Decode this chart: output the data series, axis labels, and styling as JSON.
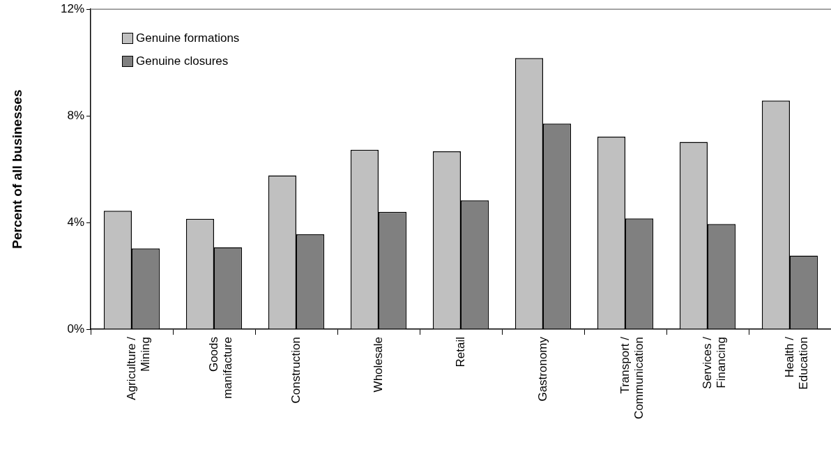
{
  "chart_data": {
    "type": "bar",
    "ylabel": "Percent of all businesses",
    "categories": [
      "Agriculture / Mining",
      "Goods manifacture",
      "Construction",
      "Wholesale",
      "Retail",
      "Gastronomy",
      "Transport / Communication",
      "Services / Financing",
      "Health / Education"
    ],
    "series": [
      {
        "name": "Genuine formations",
        "color": "#c0c0c0",
        "values": [
          4.44,
          4.14,
          5.77,
          6.73,
          6.67,
          10.17,
          7.22,
          7.02,
          8.57
        ]
      },
      {
        "name": "Genuine closures",
        "color": "#808080",
        "values": [
          3.03,
          3.07,
          3.56,
          4.4,
          4.83,
          7.71,
          4.15,
          3.94,
          2.76
        ]
      }
    ],
    "ylim": [
      0,
      12
    ],
    "yticks": [
      {
        "value": 0,
        "label": "0%"
      },
      {
        "value": 4,
        "label": "4%"
      },
      {
        "value": 8,
        "label": "8%"
      },
      {
        "value": 12,
        "label": "12%"
      }
    ],
    "grid": false,
    "legend": "top left"
  }
}
